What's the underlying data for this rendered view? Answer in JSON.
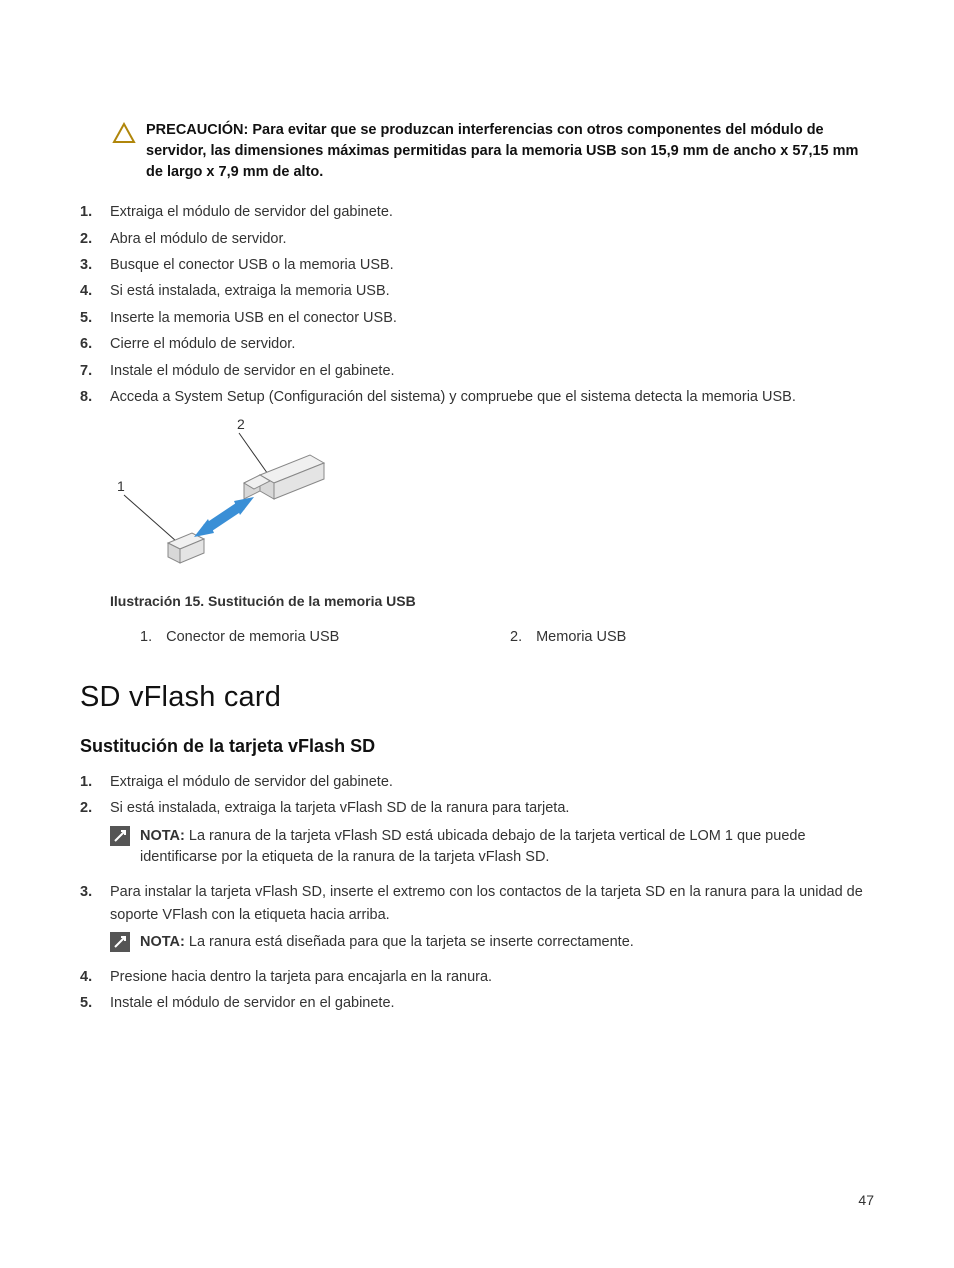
{
  "caution": {
    "label": "PRECAUCIÓN:",
    "text": "Para evitar que se produzcan interferencias con otros componentes del módulo de servidor, las dimensiones máximas permitidas para la memoria USB son 15,9 mm de ancho x 57,15 mm de largo x 7,9 mm de alto."
  },
  "steps1": [
    "Extraiga el módulo de servidor del gabinete.",
    "Abra el módulo de servidor.",
    "Busque el conector USB o la memoria USB.",
    "Si está instalada, extraiga la memoria USB.",
    "Inserte la memoria USB en el conector USB.",
    "Cierre el módulo de servidor.",
    "Instale el módulo de servidor en el gabinete.",
    "Acceda a System Setup (Configuración del sistema) y compruebe que el sistema detecta la memoria USB."
  ],
  "figure": {
    "caption": "Ilustración 15. Sustitución de la memoria USB",
    "callout1_num": "1",
    "callout2_num": "2",
    "legend": [
      {
        "n": "1.",
        "t": "Conector de memoria USB"
      },
      {
        "n": "2.",
        "t": "Memoria USB"
      }
    ],
    "colors": {
      "stroke": "#888888",
      "fill_light": "#f0f0f0",
      "fill_mid": "#d8d8d8",
      "arrow": "#3a8fd6",
      "callout_line": "#333333"
    }
  },
  "section_title": "SD vFlash card",
  "subsection_title": "Sustitución de la tarjeta vFlash SD",
  "steps2": [
    {
      "text": "Extraiga el módulo de servidor del gabinete."
    },
    {
      "text": "Si está instalada, extraiga la tarjeta vFlash SD de la ranura para tarjeta.",
      "note": "La ranura de la tarjeta vFlash SD está ubicada debajo de la tarjeta vertical de LOM 1 que puede identificarse por la etiqueta de la ranura de la tarjeta vFlash SD."
    },
    {
      "text": "Para instalar la tarjeta vFlash SD, inserte el extremo con los contactos de la tarjeta SD en la ranura para la unidad de soporte VFlash con la etiqueta hacia arriba.",
      "note": "La ranura está diseñada para que la tarjeta se inserte correctamente."
    },
    {
      "text": "Presione hacia dentro la tarjeta para encajarla en la ranura."
    },
    {
      "text": "Instale el módulo de servidor en el gabinete."
    }
  ],
  "note_label": "NOTA:",
  "page_number": "47"
}
